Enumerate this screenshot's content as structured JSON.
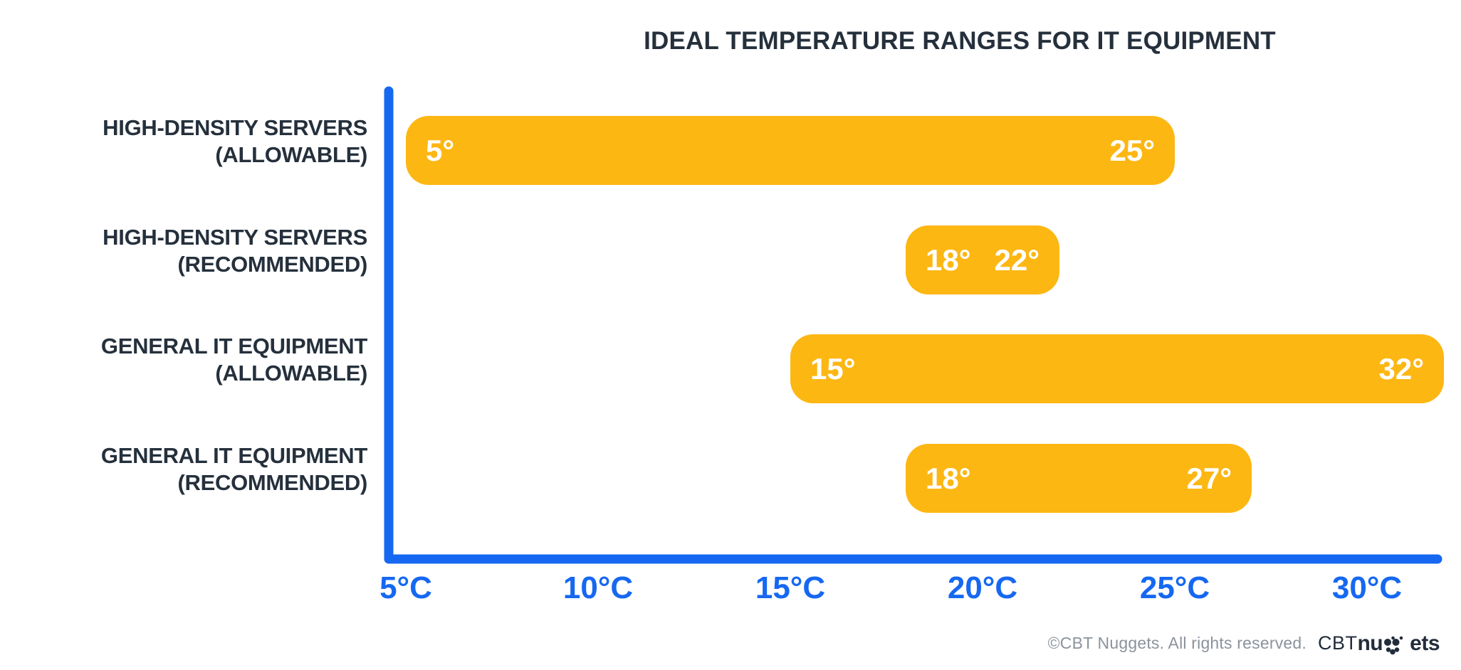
{
  "title": "IDEAL TEMPERATURE RANGES FOR IT EQUIPMENT",
  "colors": {
    "bar": "#FDB713",
    "axis": "#1668F1",
    "tick_text": "#1668F1",
    "category_text": "#25303C",
    "bar_value_text": "#FFFFFF",
    "footer_text": "#8C929C",
    "logo_text": "#222D3B",
    "background": "#FFFFFF"
  },
  "chart_data": {
    "type": "bar",
    "subtype": "horizontal-range",
    "title": "IDEAL TEMPERATURE RANGES FOR IT EQUIPMENT",
    "unit": "°C",
    "xlim": [
      5,
      32
    ],
    "grid": "off",
    "legend": "none",
    "x_ticks": [
      {
        "value": 5,
        "label": "5°C"
      },
      {
        "value": 10,
        "label": "10°C"
      },
      {
        "value": 15,
        "label": "15°C"
      },
      {
        "value": 20,
        "label": "20°C"
      },
      {
        "value": 25,
        "label": "25°C"
      },
      {
        "value": 30,
        "label": "30°C"
      }
    ],
    "rows": [
      {
        "category": "HIGH-DENSITY SERVERS (ALLOWABLE)",
        "label_line1": "HIGH-DENSITY SERVERS",
        "label_line2": "(ALLOWABLE)",
        "min": 5,
        "max": 25,
        "min_label": "5°",
        "max_label": "25°"
      },
      {
        "category": "HIGH-DENSITY SERVERS (RECOMMENDED)",
        "label_line1": "HIGH-DENSITY SERVERS",
        "label_line2": "(RECOMMENDED)",
        "min": 18,
        "max": 22,
        "min_label": "18°",
        "max_label": "22°"
      },
      {
        "category": "GENERAL IT EQUIPMENT (ALLOWABLE)",
        "label_line1": "GENERAL IT EQUIPMENT",
        "label_line2": "(ALLOWABLE)",
        "min": 15,
        "max": 32,
        "min_label": "15°",
        "max_label": "32°"
      },
      {
        "category": "GENERAL IT EQUIPMENT (RECOMMENDED)",
        "label_line1": "GENERAL IT EQUIPMENT",
        "label_line2": "(RECOMMENDED)",
        "min": 18,
        "max": 27,
        "min_label": "18°",
        "max_label": "27°"
      }
    ]
  },
  "footer": {
    "copyright": "©CBT Nuggets. All rights reserved.",
    "logo_prefix": "CBT",
    "logo_bold_1": "nu",
    "logo_bold_2": "ets"
  }
}
